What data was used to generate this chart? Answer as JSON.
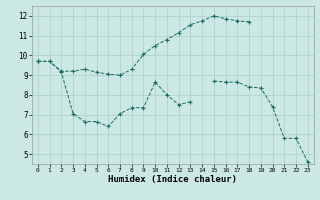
{
  "title": "",
  "xlabel": "Humidex (Indice chaleur)",
  "ylabel": "",
  "bg_color": "#cce8e4",
  "grid_color": "#aacfcb",
  "line_color": "#1a6e64",
  "xlim": [
    -0.5,
    23.5
  ],
  "ylim": [
    4.5,
    12.5
  ],
  "xticks": [
    0,
    1,
    2,
    3,
    4,
    5,
    6,
    7,
    8,
    9,
    10,
    11,
    12,
    13,
    14,
    15,
    16,
    17,
    18,
    19,
    20,
    21,
    22,
    23
  ],
  "yticks": [
    5,
    6,
    7,
    8,
    9,
    10,
    11,
    12
  ],
  "series1_x": [
    0,
    1,
    2,
    3,
    4,
    5,
    6,
    7,
    8,
    9,
    10,
    11,
    12,
    13,
    14,
    15,
    16,
    17,
    18
  ],
  "series1_y": [
    9.7,
    9.7,
    9.2,
    9.2,
    9.3,
    9.15,
    9.05,
    9.0,
    9.3,
    10.05,
    10.5,
    10.8,
    11.15,
    11.55,
    11.75,
    12.0,
    11.85,
    11.75,
    11.7
  ],
  "series2_x": [
    0,
    1,
    2,
    3,
    4,
    5,
    6,
    7,
    8,
    9,
    10,
    11,
    12,
    13
  ],
  "series2_y": [
    9.7,
    9.7,
    9.15,
    7.05,
    6.65,
    6.65,
    6.4,
    7.05,
    7.35,
    7.35,
    8.65,
    8.0,
    7.5,
    7.65
  ],
  "series3a_x": [
    0
  ],
  "series3a_y": [
    9.7
  ],
  "series3b_x": [
    15,
    16,
    17,
    18,
    19,
    20,
    21,
    22,
    23
  ],
  "series3b_y": [
    8.7,
    8.65,
    8.65,
    8.4,
    8.35,
    7.4,
    5.8,
    5.8,
    4.6
  ]
}
